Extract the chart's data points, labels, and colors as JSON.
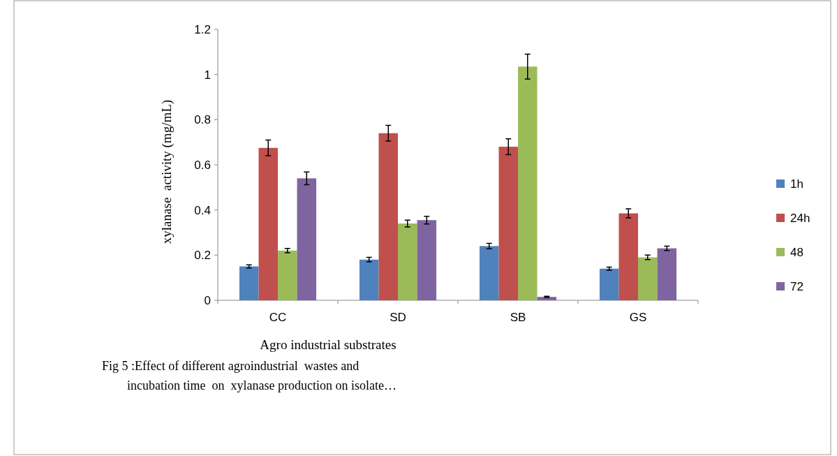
{
  "chart_data": {
    "type": "bar",
    "xlabel": "Agro industrial substrates",
    "ylabel": "xylanase  activity (mg/mL)",
    "categories": [
      "CC",
      "SD",
      "SB",
      "GS"
    ],
    "series": [
      {
        "name": "1h",
        "color": "#4f81bd",
        "values": [
          0.15,
          0.18,
          0.24,
          0.14
        ],
        "errors": [
          0.007,
          0.01,
          0.012,
          0.007
        ]
      },
      {
        "name": "24h",
        "color": "#c0504d",
        "values": [
          0.675,
          0.74,
          0.68,
          0.385
        ],
        "errors": [
          0.035,
          0.035,
          0.035,
          0.02
        ]
      },
      {
        "name": "48",
        "color": "#9bbb59",
        "values": [
          0.22,
          0.34,
          1.035,
          0.19
        ],
        "errors": [
          0.01,
          0.015,
          0.055,
          0.01
        ]
      },
      {
        "name": "72",
        "color": "#8064a2",
        "values": [
          0.54,
          0.355,
          0.015,
          0.23
        ],
        "errors": [
          0.028,
          0.017,
          0.003,
          0.01
        ]
      }
    ],
    "ylim": [
      0,
      1.2
    ],
    "yticks": [
      0,
      0.2,
      0.4,
      0.6,
      0.8,
      1,
      1.2
    ],
    "grid": false,
    "legend": "right",
    "annotations": [
      "Fig 5 :Effect of different agroindustrial  wastes and\n        incubation time  on  xylanase production on isolate…"
    ]
  }
}
